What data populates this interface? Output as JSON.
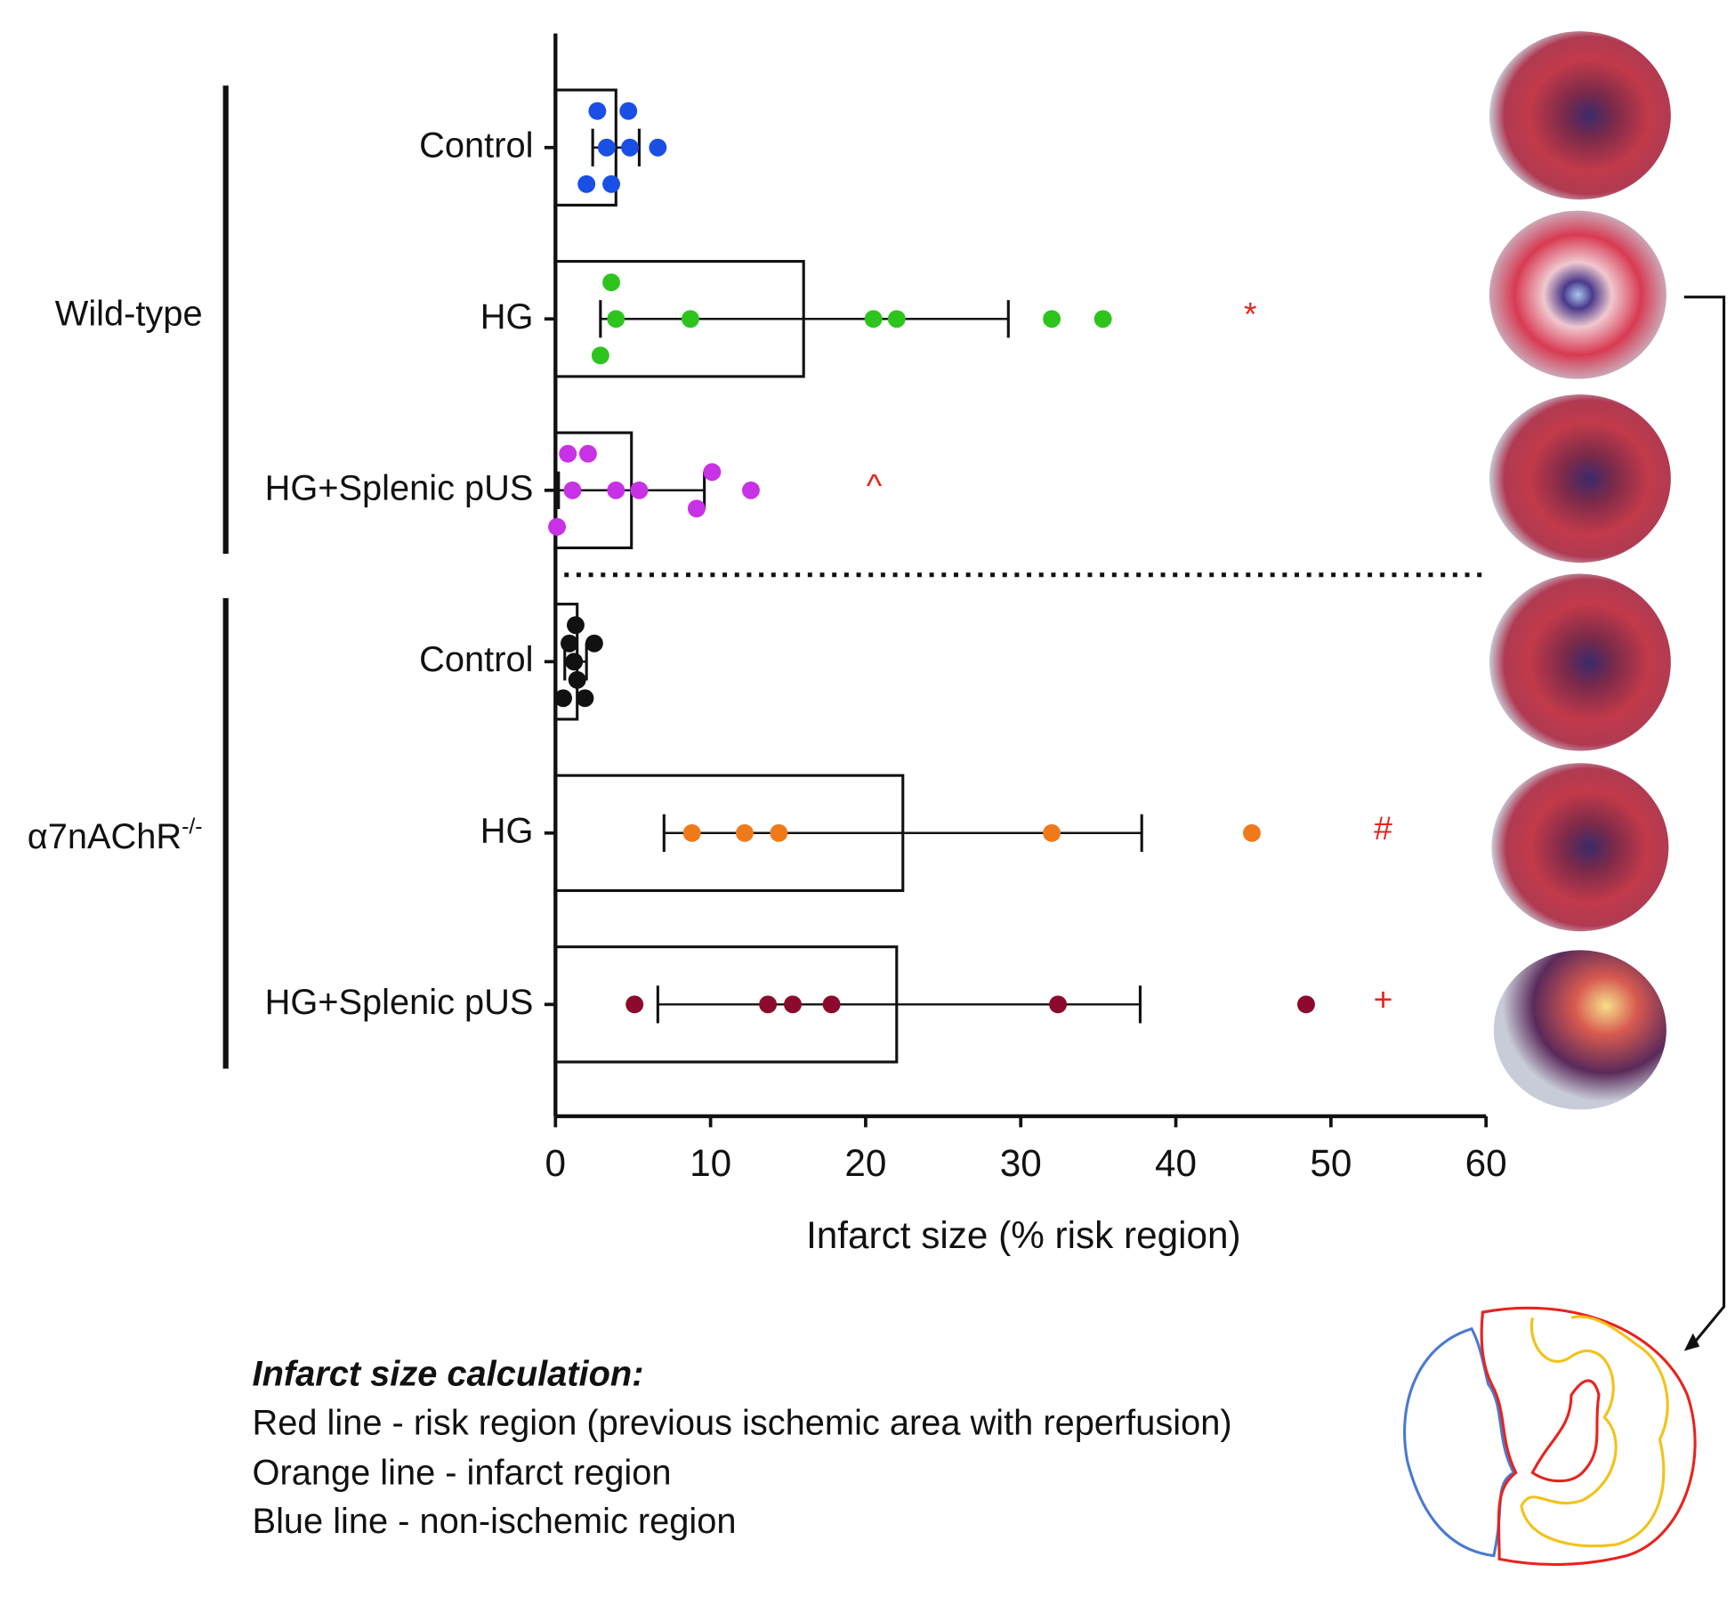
{
  "chart_data": {
    "type": "bar",
    "orientation": "horizontal",
    "xlabel": "Infarct size (% risk region)",
    "xlim": [
      0,
      60
    ],
    "xticks": [
      0,
      10,
      20,
      30,
      40,
      50,
      60
    ],
    "groups": [
      {
        "name": "Wild-type"
      },
      {
        "name": "α7nAChR",
        "name_sup": "-/-"
      }
    ],
    "rows": [
      {
        "category": "Control",
        "color": "#1a4fe6",
        "mean": 3.9,
        "whisker": [
          2.4,
          5.4
        ],
        "points": [
          2.7,
          4.7,
          3.3,
          4.8,
          6.6,
          2.0,
          3.6
        ]
      },
      {
        "category": "HG",
        "color": "#2ec41e",
        "mean": 16.0,
        "whisker": [
          2.9,
          29.2
        ],
        "points": [
          3.6,
          3.9,
          8.7,
          20.5,
          22.0,
          32.0,
          35.3,
          2.9
        ],
        "annotation": "*"
      },
      {
        "category": "HG+Splenic pUS",
        "color": "#c832e6",
        "mean": 4.9,
        "whisker": [
          0.2,
          9.6
        ],
        "points": [
          0.8,
          2.1,
          10.1,
          1.1,
          3.9,
          5.4,
          12.6,
          9.1,
          0.1
        ],
        "annotation": "^"
      },
      {
        "category": "Control",
        "color": "#111111",
        "mean": 1.4,
        "whisker": [
          0.6,
          2.0
        ],
        "points": [
          1.3,
          0.9,
          2.5,
          1.2,
          1.4,
          0.5,
          1.9
        ]
      },
      {
        "category": "HG",
        "color": "#f07a1a",
        "mean": 22.4,
        "whisker": [
          7.0,
          37.8
        ],
        "points": [
          8.8,
          12.2,
          14.4,
          32.0,
          44.9
        ],
        "annotation": "#"
      },
      {
        "category": "HG+Splenic pUS",
        "color": "#8c0a2e",
        "mean": 22.0,
        "whisker": [
          6.6,
          37.7
        ],
        "points": [
          5.1,
          13.7,
          15.3,
          17.8,
          32.4,
          48.4
        ],
        "annotation": "+"
      }
    ]
  },
  "notes": {
    "title": "Infarct size calculation:",
    "lines": [
      "Red line - risk region (previous ischemic area with reperfusion)",
      "Orange line - infarct region",
      "Blue line - non-ischemic region"
    ]
  }
}
